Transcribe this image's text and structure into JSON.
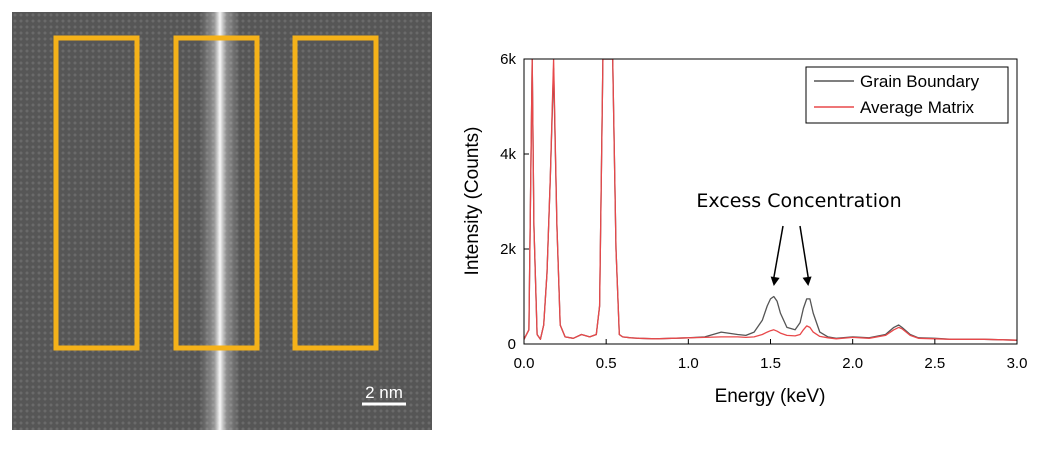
{
  "micrograph": {
    "scale_bar_label": "2 nm",
    "roi_color": "#F5B219",
    "roi_count": 3
  },
  "chart_data": {
    "type": "line",
    "xlabel": "Energy (keV)",
    "ylabel": "Intensity (Counts)",
    "xlim": [
      0.0,
      3.0
    ],
    "ylim": [
      0,
      6000
    ],
    "x_ticks": [
      "0.0",
      "0.5",
      "1.0",
      "1.5",
      "2.0",
      "2.5",
      "3.0"
    ],
    "y_ticks": [
      "0",
      "2k",
      "4k",
      "6k"
    ],
    "legend_position": "top-right",
    "grid": false,
    "annotation": {
      "text": "Excess Concentration",
      "arrows_to_x": [
        1.52,
        1.73
      ]
    },
    "series": [
      {
        "name": "Grain Boundary",
        "color": "#555555",
        "x": [
          0.0,
          0.03,
          0.05,
          0.06,
          0.08,
          0.1,
          0.12,
          0.14,
          0.16,
          0.18,
          0.2,
          0.22,
          0.25,
          0.3,
          0.35,
          0.4,
          0.44,
          0.46,
          0.48,
          0.5,
          0.52,
          0.54,
          0.56,
          0.58,
          0.6,
          0.65,
          0.7,
          0.8,
          0.9,
          1.0,
          1.1,
          1.2,
          1.3,
          1.35,
          1.4,
          1.45,
          1.48,
          1.5,
          1.52,
          1.54,
          1.56,
          1.6,
          1.65,
          1.68,
          1.7,
          1.72,
          1.74,
          1.76,
          1.8,
          1.85,
          1.9,
          2.0,
          2.1,
          2.2,
          2.25,
          2.28,
          2.3,
          2.35,
          2.4,
          2.5,
          2.6,
          2.8,
          3.0
        ],
        "y": [
          100,
          300,
          6000,
          2500,
          200,
          100,
          400,
          1500,
          3500,
          5800,
          2500,
          400,
          150,
          120,
          200,
          150,
          200,
          800,
          6000,
          6000,
          6000,
          6000,
          2000,
          200,
          150,
          130,
          120,
          110,
          120,
          130,
          150,
          250,
          200,
          180,
          250,
          500,
          800,
          950,
          1000,
          900,
          650,
          350,
          300,
          450,
          750,
          950,
          950,
          650,
          250,
          150,
          120,
          150,
          130,
          200,
          350,
          400,
          350,
          200,
          130,
          120,
          100,
          100,
          80
        ]
      },
      {
        "name": "Average Matrix",
        "color": "#E8484A",
        "x": [
          0.0,
          0.03,
          0.05,
          0.06,
          0.08,
          0.1,
          0.12,
          0.14,
          0.16,
          0.18,
          0.2,
          0.22,
          0.25,
          0.3,
          0.35,
          0.4,
          0.44,
          0.46,
          0.48,
          0.5,
          0.52,
          0.54,
          0.56,
          0.58,
          0.6,
          0.65,
          0.7,
          0.8,
          0.9,
          1.0,
          1.1,
          1.2,
          1.3,
          1.35,
          1.4,
          1.45,
          1.48,
          1.5,
          1.52,
          1.54,
          1.56,
          1.6,
          1.65,
          1.68,
          1.7,
          1.72,
          1.74,
          1.76,
          1.8,
          1.85,
          1.9,
          2.0,
          2.1,
          2.2,
          2.25,
          2.28,
          2.3,
          2.35,
          2.4,
          2.5,
          2.6,
          2.8,
          3.0
        ],
        "y": [
          100,
          300,
          6000,
          2500,
          200,
          100,
          400,
          1500,
          3500,
          6000,
          2500,
          400,
          150,
          120,
          200,
          150,
          200,
          800,
          6000,
          6000,
          6000,
          6000,
          2000,
          200,
          150,
          130,
          120,
          110,
          120,
          130,
          140,
          150,
          150,
          140,
          150,
          200,
          250,
          280,
          300,
          270,
          230,
          180,
          170,
          200,
          300,
          380,
          350,
          250,
          160,
          130,
          110,
          140,
          120,
          180,
          300,
          350,
          320,
          180,
          120,
          110,
          100,
          100,
          80
        ]
      }
    ]
  }
}
